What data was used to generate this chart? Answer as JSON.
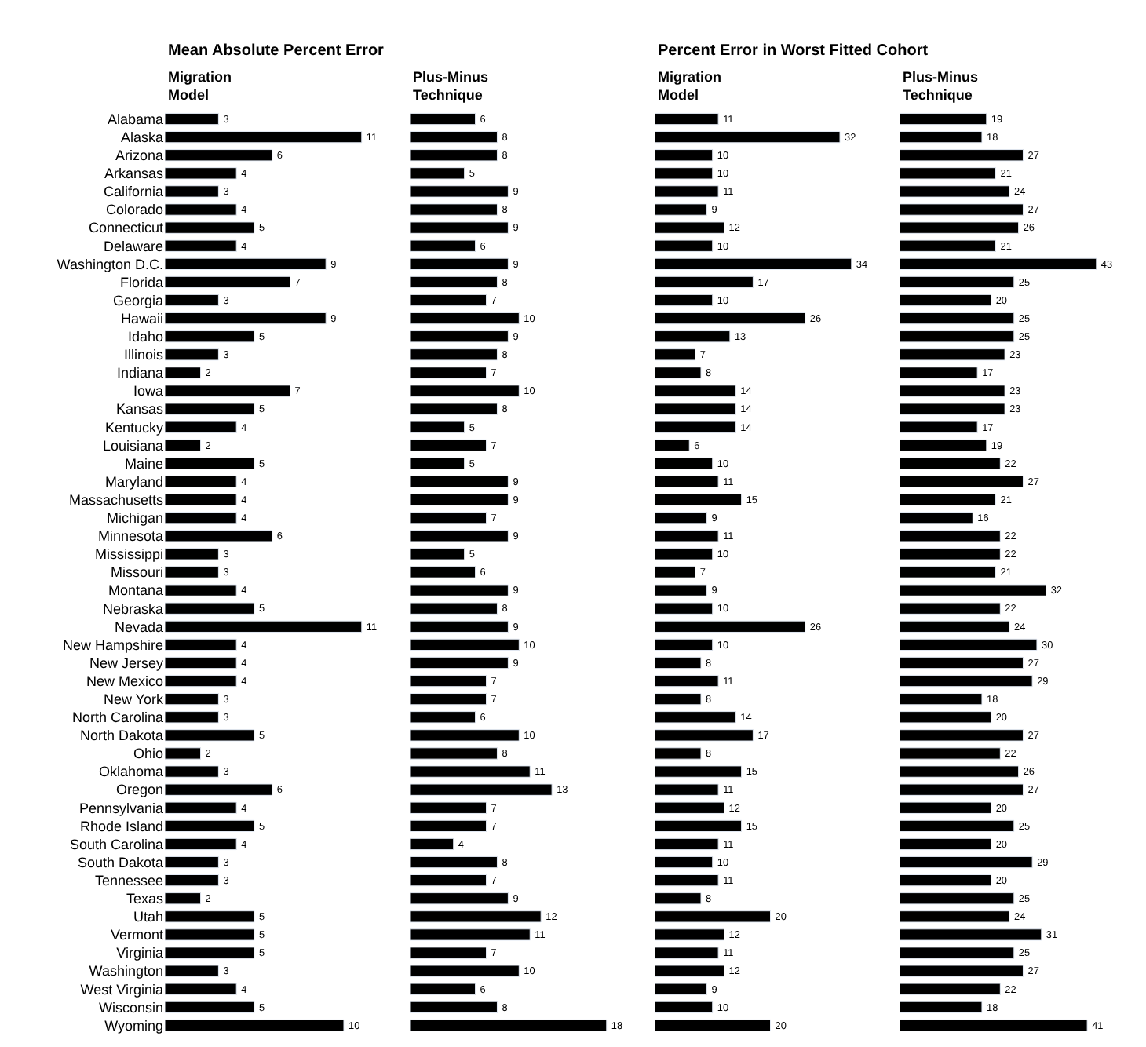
{
  "chart_data": [
    {
      "type": "bar",
      "orientation": "horizontal",
      "title": "Mean Absolute Percent Error",
      "subtitle": "Migration\nModel",
      "data_labels": true,
      "tick_labels": "y",
      "color": "#000000",
      "categories": [
        "Alabama",
        "Alaska",
        "Arizona",
        "Arkansas",
        "California",
        "Colorado",
        "Connecticut",
        "Delaware",
        "Washington D.C.",
        "Florida",
        "Georgia",
        "Hawaii",
        "Idaho",
        "Illinois",
        "Indiana",
        "Iowa",
        "Kansas",
        "Kentucky",
        "Louisiana",
        "Maine",
        "Maryland",
        "Massachusetts",
        "Michigan",
        "Minnesota",
        "Mississippi",
        "Missouri",
        "Montana",
        "Nebraska",
        "Nevada",
        "New Hampshire",
        "New Jersey",
        "New Mexico",
        "New York",
        "North Carolina",
        "North Dakota",
        "Ohio",
        "Oklahoma",
        "Oregon",
        "Pennsylvania",
        "Rhode Island",
        "South Carolina",
        "South Dakota",
        "Tennessee",
        "Texas",
        "Utah",
        "Vermont",
        "Virginia",
        "Washington",
        "West Virginia",
        "Wisconsin",
        "Wyoming"
      ],
      "values": [
        3,
        11,
        6,
        4,
        3,
        4,
        5,
        4,
        9,
        7,
        3,
        9,
        5,
        3,
        2,
        7,
        5,
        4,
        2,
        5,
        4,
        4,
        4,
        6,
        3,
        3,
        4,
        5,
        11,
        4,
        4,
        4,
        3,
        3,
        5,
        2,
        3,
        6,
        4,
        5,
        4,
        3,
        3,
        2,
        5,
        5,
        5,
        3,
        4,
        5,
        10
      ]
    },
    {
      "type": "bar",
      "orientation": "horizontal",
      "subtitle": "Plus-Minus\nTechnique",
      "data_labels": true,
      "tick_labels": false,
      "color": "#000000",
      "categories": [
        "Alabama",
        "Alaska",
        "Arizona",
        "Arkansas",
        "California",
        "Colorado",
        "Connecticut",
        "Delaware",
        "Washington D.C.",
        "Florida",
        "Georgia",
        "Hawaii",
        "Idaho",
        "Illinois",
        "Indiana",
        "Iowa",
        "Kansas",
        "Kentucky",
        "Louisiana",
        "Maine",
        "Maryland",
        "Massachusetts",
        "Michigan",
        "Minnesota",
        "Mississippi",
        "Missouri",
        "Montana",
        "Nebraska",
        "Nevada",
        "New Hampshire",
        "New Jersey",
        "New Mexico",
        "New York",
        "North Carolina",
        "North Dakota",
        "Ohio",
        "Oklahoma",
        "Oregon",
        "Pennsylvania",
        "Rhode Island",
        "South Carolina",
        "South Dakota",
        "Tennessee",
        "Texas",
        "Utah",
        "Vermont",
        "Virginia",
        "Washington",
        "West Virginia",
        "Wisconsin",
        "Wyoming"
      ],
      "values": [
        6,
        8,
        8,
        5,
        9,
        8,
        9,
        6,
        9,
        8,
        7,
        10,
        9,
        8,
        7,
        10,
        8,
        5,
        7,
        5,
        9,
        9,
        7,
        9,
        5,
        6,
        9,
        8,
        9,
        10,
        9,
        7,
        7,
        6,
        10,
        8,
        11,
        13,
        7,
        7,
        4,
        8,
        7,
        9,
        12,
        11,
        7,
        10,
        6,
        8,
        18
      ]
    },
    {
      "type": "bar",
      "orientation": "horizontal",
      "title": "Percent Error in Worst Fitted Cohort",
      "subtitle": "Migration\nModel",
      "data_labels": true,
      "tick_labels": false,
      "color": "#000000",
      "categories": [
        "Alabama",
        "Alaska",
        "Arizona",
        "Arkansas",
        "California",
        "Colorado",
        "Connecticut",
        "Delaware",
        "Washington D.C.",
        "Florida",
        "Georgia",
        "Hawaii",
        "Idaho",
        "Illinois",
        "Indiana",
        "Iowa",
        "Kansas",
        "Kentucky",
        "Louisiana",
        "Maine",
        "Maryland",
        "Massachusetts",
        "Michigan",
        "Minnesota",
        "Mississippi",
        "Missouri",
        "Montana",
        "Nebraska",
        "Nevada",
        "New Hampshire",
        "New Jersey",
        "New Mexico",
        "New York",
        "North Carolina",
        "North Dakota",
        "Ohio",
        "Oklahoma",
        "Oregon",
        "Pennsylvania",
        "Rhode Island",
        "South Carolina",
        "South Dakota",
        "Tennessee",
        "Texas",
        "Utah",
        "Vermont",
        "Virginia",
        "Washington",
        "West Virginia",
        "Wisconsin",
        "Wyoming"
      ],
      "values": [
        11,
        32,
        10,
        10,
        11,
        9,
        12,
        10,
        34,
        17,
        10,
        26,
        13,
        7,
        8,
        14,
        14,
        14,
        6,
        10,
        11,
        15,
        9,
        11,
        10,
        7,
        9,
        10,
        26,
        10,
        8,
        11,
        8,
        14,
        17,
        8,
        15,
        11,
        12,
        15,
        11,
        10,
        11,
        8,
        20,
        12,
        11,
        12,
        9,
        10,
        20
      ]
    },
    {
      "type": "bar",
      "orientation": "horizontal",
      "subtitle": "Plus-Minus\nTechnique",
      "data_labels": true,
      "tick_labels": false,
      "color": "#000000",
      "categories": [
        "Alabama",
        "Alaska",
        "Arizona",
        "Arkansas",
        "California",
        "Colorado",
        "Connecticut",
        "Delaware",
        "Washington D.C.",
        "Florida",
        "Georgia",
        "Hawaii",
        "Idaho",
        "Illinois",
        "Indiana",
        "Iowa",
        "Kansas",
        "Kentucky",
        "Louisiana",
        "Maine",
        "Maryland",
        "Massachusetts",
        "Michigan",
        "Minnesota",
        "Mississippi",
        "Missouri",
        "Montana",
        "Nebraska",
        "Nevada",
        "New Hampshire",
        "New Jersey",
        "New Mexico",
        "New York",
        "North Carolina",
        "North Dakota",
        "Ohio",
        "Oklahoma",
        "Oregon",
        "Pennsylvania",
        "Rhode Island",
        "South Carolina",
        "South Dakota",
        "Tennessee",
        "Texas",
        "Utah",
        "Vermont",
        "Virginia",
        "Washington",
        "West Virginia",
        "Wisconsin",
        "Wyoming"
      ],
      "values": [
        19,
        18,
        27,
        21,
        24,
        27,
        26,
        21,
        43,
        25,
        20,
        25,
        25,
        23,
        17,
        23,
        23,
        17,
        19,
        22,
        27,
        21,
        16,
        22,
        22,
        21,
        32,
        22,
        24,
        30,
        27,
        29,
        18,
        20,
        27,
        22,
        26,
        27,
        20,
        25,
        20,
        29,
        20,
        25,
        24,
        31,
        25,
        27,
        22,
        18,
        41
      ]
    }
  ]
}
